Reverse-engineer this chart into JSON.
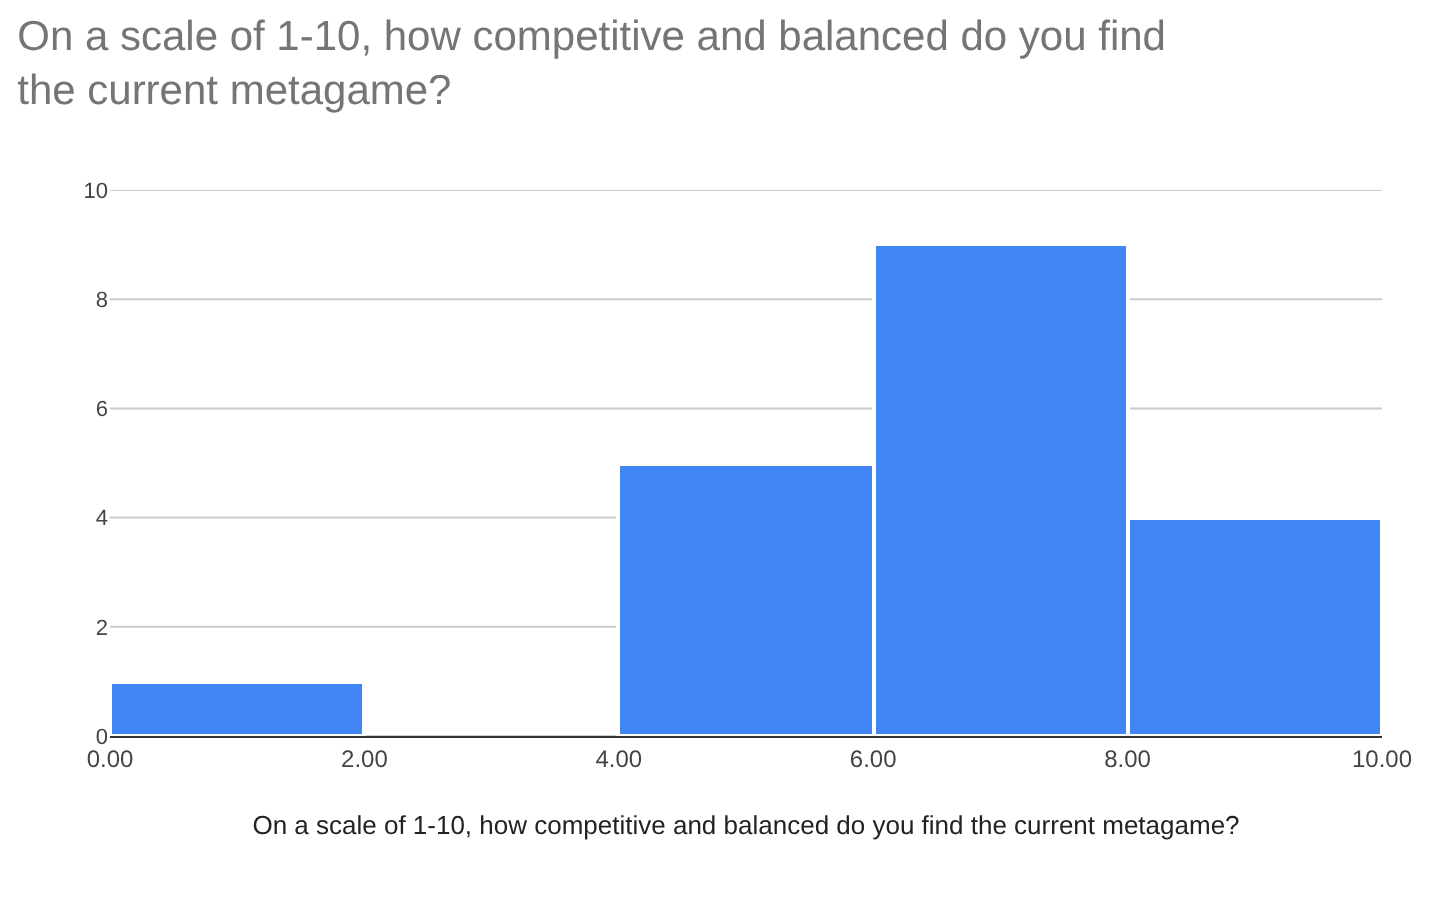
{
  "chart_data": {
    "type": "histogram",
    "title": "On a scale of 1-10, how competitive and balanced do you find\nthe current metagame?",
    "xlabel": "On a scale of 1-10, how competitive and balanced do you find the current metagame?",
    "bins": [
      0,
      2,
      4,
      6,
      8,
      10
    ],
    "values": [
      1,
      0,
      5,
      9,
      4
    ],
    "color": "#4285f4",
    "xlim": [
      0,
      10
    ],
    "xticks": [
      {
        "value": 0,
        "label": "0.00"
      },
      {
        "value": 2,
        "label": "2.00"
      },
      {
        "value": 4,
        "label": "4.00"
      },
      {
        "value": 6,
        "label": "6.00"
      },
      {
        "value": 8,
        "label": "8.00"
      },
      {
        "value": 10,
        "label": "10.00"
      }
    ],
    "ylim": [
      0,
      10
    ],
    "yticks": [
      0,
      2,
      4,
      6,
      8,
      10
    ],
    "grid": "y",
    "legend": false
  }
}
